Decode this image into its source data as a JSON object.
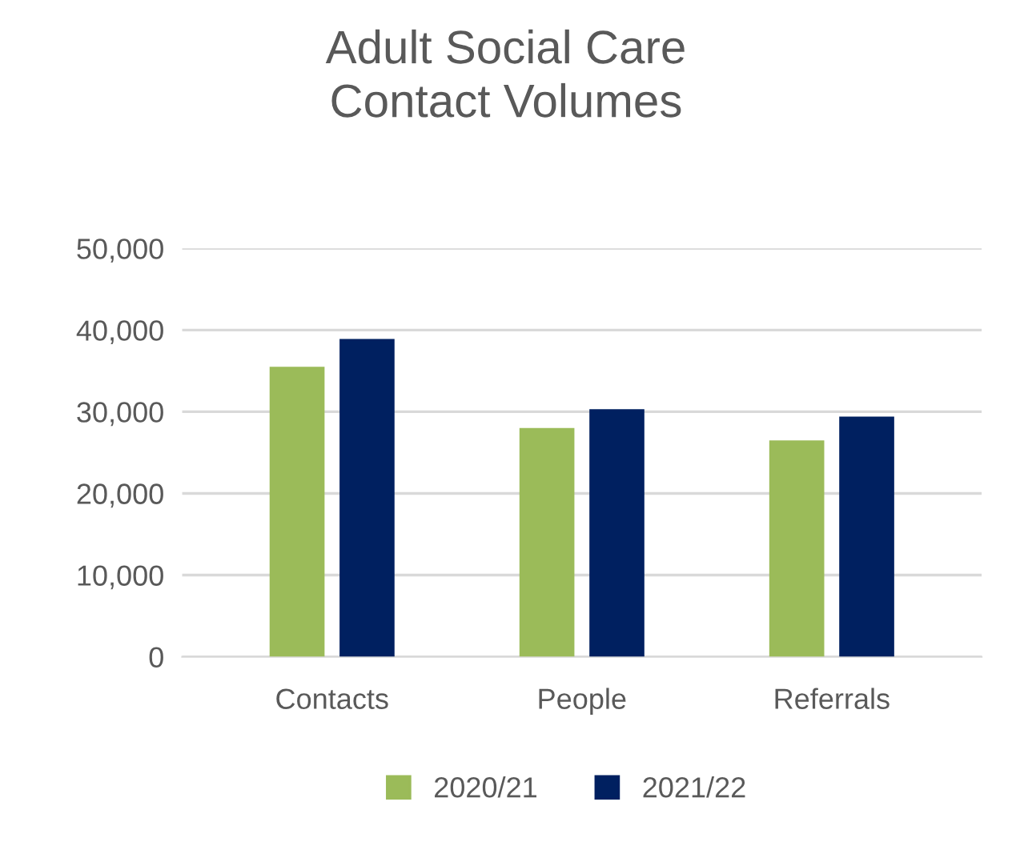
{
  "chart_data": {
    "type": "bar",
    "title": "Adult Social Care\nContact Volumes",
    "categories": [
      "Contacts",
      "People",
      "Referrals"
    ],
    "series": [
      {
        "name": "2020/21",
        "color": "#9bbb59",
        "values": [
          35500,
          28000,
          26500
        ]
      },
      {
        "name": "2021/22",
        "color": "#002060",
        "values": [
          38900,
          30300,
          29400
        ]
      }
    ],
    "ylim": [
      0,
      50000
    ],
    "yticks": [
      {
        "value": 0,
        "label": "0"
      },
      {
        "value": 10000,
        "label": "10,000"
      },
      {
        "value": 20000,
        "label": "20,000"
      },
      {
        "value": 30000,
        "label": "30,000"
      },
      {
        "value": 40000,
        "label": "40,000"
      },
      {
        "value": 50000,
        "label": "50,000"
      }
    ],
    "grid": "y",
    "legend": "bottom"
  }
}
